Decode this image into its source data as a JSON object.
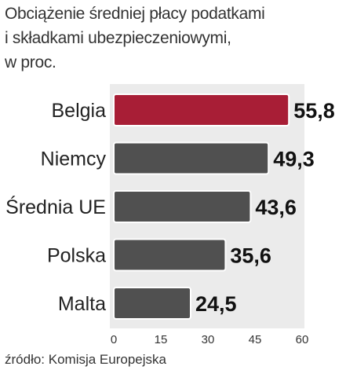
{
  "title_lines": [
    "Obciążenie średniej płacy podatkami",
    "i składkami ubezpieczeniowymi,",
    "w proc."
  ],
  "source": "źródło: Komisja Europejska",
  "chart_data": {
    "type": "bar",
    "orientation": "horizontal",
    "title": "Obciążenie średniej płacy podatkami i składkami ubezpieczeniowymi, w proc.",
    "categories": [
      "Belgia",
      "Niemcy",
      "Średnia UE",
      "Polska",
      "Malta"
    ],
    "values": [
      55.8,
      49.3,
      43.6,
      35.6,
      24.5
    ],
    "value_labels": [
      "55,8",
      "49,3",
      "43,6",
      "35,6",
      "24,5"
    ],
    "xlim": [
      0,
      60
    ],
    "xticks": [
      0,
      15,
      30,
      45,
      60
    ],
    "grid": false,
    "legend": "none",
    "colors": {
      "highlight": "#a81e36",
      "bar": "#505050",
      "bar_outline": "#ffffff",
      "panel": "#ebebeb"
    },
    "highlight_index": 0
  }
}
